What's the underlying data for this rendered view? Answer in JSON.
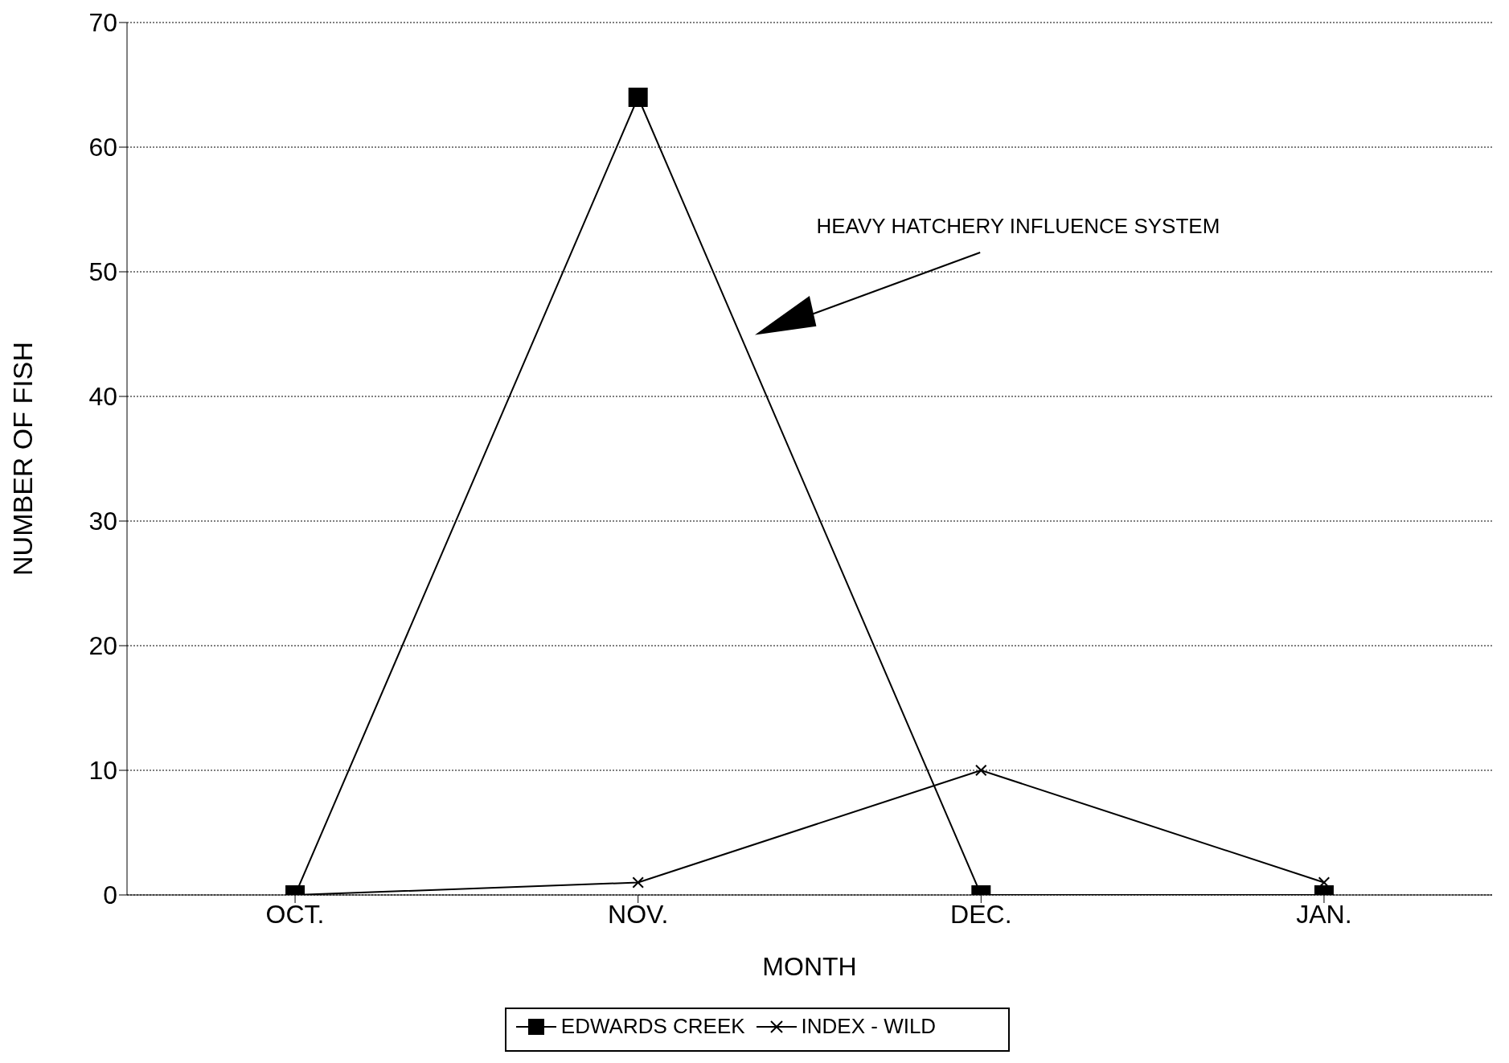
{
  "chart_data": {
    "type": "line",
    "xlabel": "MONTH",
    "ylabel": "NUMBER OF FISH",
    "categories": [
      "OCT.",
      "NOV.",
      "DEC.",
      "JAN."
    ],
    "series": [
      {
        "name": "EDWARDS CREEK",
        "color": "#000000",
        "values": [
          0,
          64,
          0,
          0
        ],
        "marker": "square"
      },
      {
        "name": "INDEX - WILD",
        "color": "#000000",
        "values": [
          0,
          1,
          10,
          1
        ],
        "marker": "cross"
      }
    ],
    "ylim": [
      0,
      70
    ],
    "yticks": [
      0,
      10,
      20,
      30,
      40,
      50,
      60,
      70
    ],
    "grid": "y",
    "legend": "bottom",
    "line_style": "solid",
    "annotations": [
      "HEAVY HATCHERY INFLUENCE SYSTEM"
    ]
  }
}
